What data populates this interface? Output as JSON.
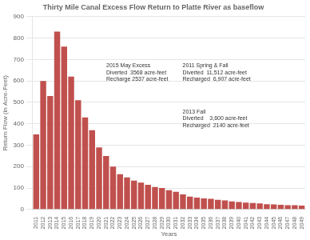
{
  "chart_data": {
    "type": "bar",
    "title": "Thirty Mile Canal Excess Flow Return to Platte River as baseflow",
    "xlabel": "Years",
    "ylabel": "Return Flow (in Acre-Feet)",
    "categories": [
      "2011",
      "2012",
      "2013",
      "2014",
      "2015",
      "2016",
      "2017",
      "2018",
      "2019",
      "2020",
      "2021",
      "2022",
      "2023",
      "2024",
      "2025",
      "2026",
      "2027",
      "2028",
      "2029",
      "2030",
      "2031",
      "2032",
      "2033",
      "2034",
      "2035",
      "2036",
      "2037",
      "2038",
      "2039",
      "2040",
      "2041",
      "2042",
      "2043",
      "2044",
      "2045",
      "2046",
      "2047",
      "2048",
      "2049"
    ],
    "values": [
      350,
      600,
      530,
      830,
      760,
      620,
      510,
      430,
      370,
      290,
      250,
      200,
      165,
      150,
      135,
      125,
      115,
      105,
      100,
      90,
      82,
      70,
      60,
      55,
      52,
      50,
      45,
      42,
      38,
      35,
      32,
      30,
      28,
      25,
      24,
      22,
      20,
      20,
      18
    ],
    "color": "#C0504D",
    "ylim": [
      0,
      900
    ],
    "yticks": [
      0,
      100,
      200,
      300,
      400,
      500,
      600,
      700,
      800,
      900
    ],
    "grid": true,
    "annotations": [
      "2015 May Excess\nDiverted  3568 acre-feet\nRecharge 2537 acre-feet",
      "2011 Spring & Fall\nDiverted  11,512 acre-feet\nRecharged  6,907 acre-feet",
      "2013 Fall\nDiverted    3,600 acre-feet\nRecharged  2140 acre-feet"
    ]
  }
}
